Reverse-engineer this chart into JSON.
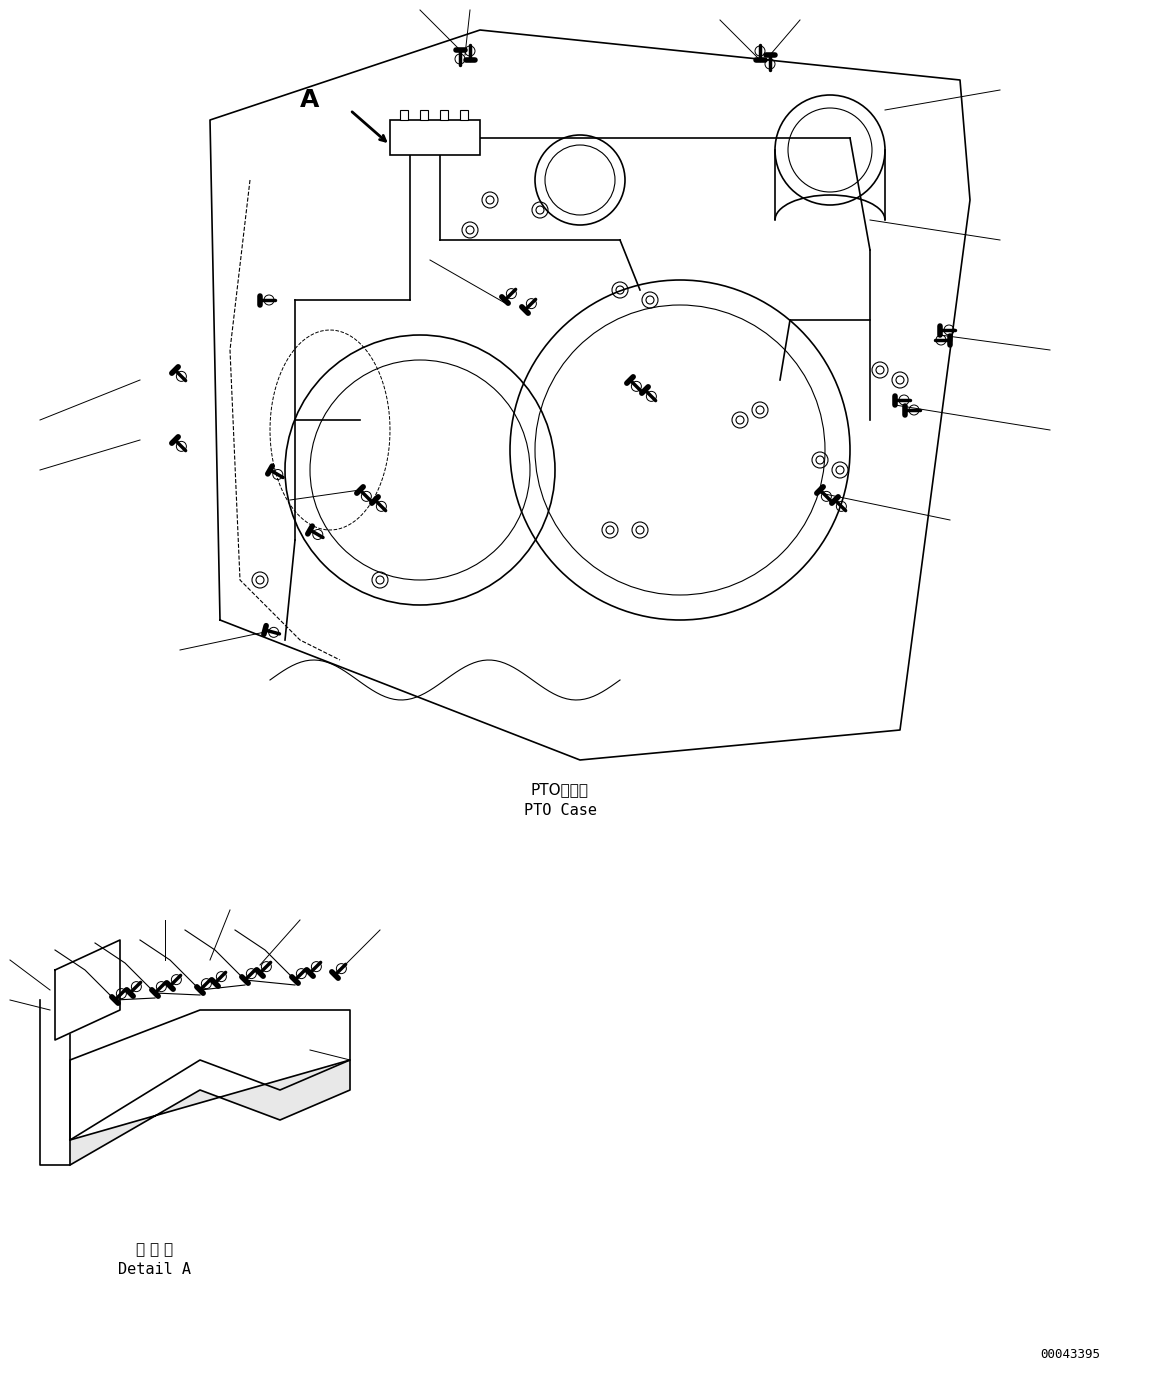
{
  "bg_color": "#ffffff",
  "line_color": "#000000",
  "figure_width": 11.63,
  "figure_height": 13.82,
  "dpi": 100,
  "label_pto_japanese": "PTOケース",
  "label_pto_english": "PTO Case",
  "label_detail_japanese": "Ａ 詳 細",
  "label_detail_english": "Detail A",
  "label_A": "A",
  "part_number": "00043395",
  "font_size_labels": 11,
  "font_size_small": 9,
  "font_size_partnumber": 9
}
